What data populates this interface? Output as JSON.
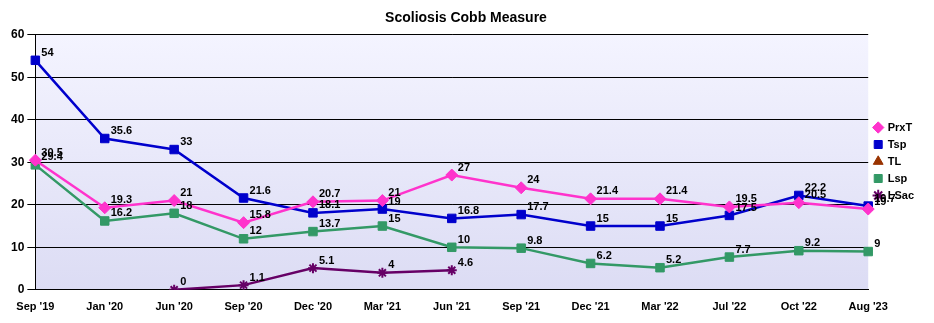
{
  "chart_data": {
    "type": "line",
    "title": "Scoliosis Cobb Measure",
    "categories": [
      "Sep '19",
      "Jan '20",
      "Jun '20",
      "Sep '20",
      "Dec '20",
      "Mar '21",
      "Jun '21",
      "Sep '21",
      "Dec '21",
      "Mar '22",
      "Jul '22",
      "Oct '22",
      "Aug '23"
    ],
    "series": [
      {
        "name": "PrxT",
        "color": "#ff33cc",
        "marker": "diamond",
        "values": [
          30.5,
          19.3,
          21,
          15.8,
          20.7,
          21,
          27,
          24,
          21.4,
          21.4,
          19.5,
          20.5,
          19
        ]
      },
      {
        "name": "Tsp",
        "color": "#0000cc",
        "marker": "square",
        "values": [
          54,
          35.6,
          33,
          21.6,
          18.1,
          19,
          16.8,
          17.7,
          15,
          15,
          17.5,
          22.2,
          19.7
        ]
      },
      {
        "name": "TL",
        "color": "#993300",
        "marker": "triangle",
        "values": [
          null,
          null,
          null,
          null,
          null,
          null,
          null,
          null,
          null,
          null,
          null,
          null,
          null
        ]
      },
      {
        "name": "Lsp",
        "color": "#339966",
        "marker": "square",
        "values": [
          29.4,
          16.2,
          18,
          12,
          13.7,
          15,
          10,
          9.8,
          6.2,
          5.2,
          7.7,
          9.2,
          9
        ]
      },
      {
        "name": "LSac",
        "color": "#660066",
        "marker": "star",
        "values": [
          null,
          null,
          0,
          1.1,
          5.1,
          4,
          4.6,
          null,
          null,
          null,
          null,
          null,
          null
        ]
      }
    ],
    "ylim": [
      0,
      60
    ],
    "yticks": [
      0,
      10,
      20,
      30,
      40,
      50,
      60
    ],
    "grid": true,
    "legend": "right",
    "data_labels": true
  }
}
